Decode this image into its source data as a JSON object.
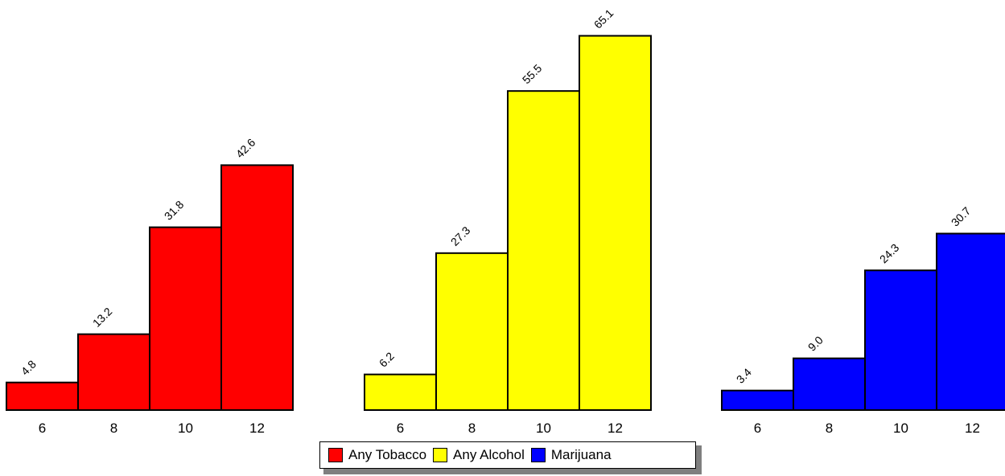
{
  "chart_data": [
    {
      "type": "bar",
      "categories": [
        "6",
        "8",
        "10",
        "12"
      ],
      "values": [
        4.8,
        13.2,
        31.8,
        42.6
      ],
      "value_labels": [
        "4.8",
        "13.2",
        "31.8",
        "42.6"
      ],
      "series_name": "Any Tobacco",
      "color": "#ff0000",
      "ylim": [
        0,
        70
      ]
    },
    {
      "type": "bar",
      "categories": [
        "6",
        "8",
        "10",
        "12"
      ],
      "values": [
        6.2,
        27.3,
        55.5,
        65.1
      ],
      "value_labels": [
        "6.2",
        "27.3",
        "55.5",
        "65.1"
      ],
      "series_name": "Any Alcohol",
      "color": "#ffff00",
      "ylim": [
        0,
        70
      ]
    },
    {
      "type": "bar",
      "categories": [
        "6",
        "8",
        "10",
        "12"
      ],
      "values": [
        3.4,
        9.0,
        24.3,
        30.7
      ],
      "value_labels": [
        "3.4",
        "9.0",
        "24.3",
        "30.7"
      ],
      "series_name": "Marijuana",
      "color": "#0000ff",
      "ylim": [
        0,
        70
      ]
    }
  ],
  "legend": {
    "placement": "bottom-center",
    "items": [
      {
        "label": "Any Tobacco",
        "color": "#ff0000"
      },
      {
        "label": "Any Alcohol",
        "color": "#ffff00"
      },
      {
        "label": "Marijuana",
        "color": "#0000ff"
      }
    ]
  }
}
